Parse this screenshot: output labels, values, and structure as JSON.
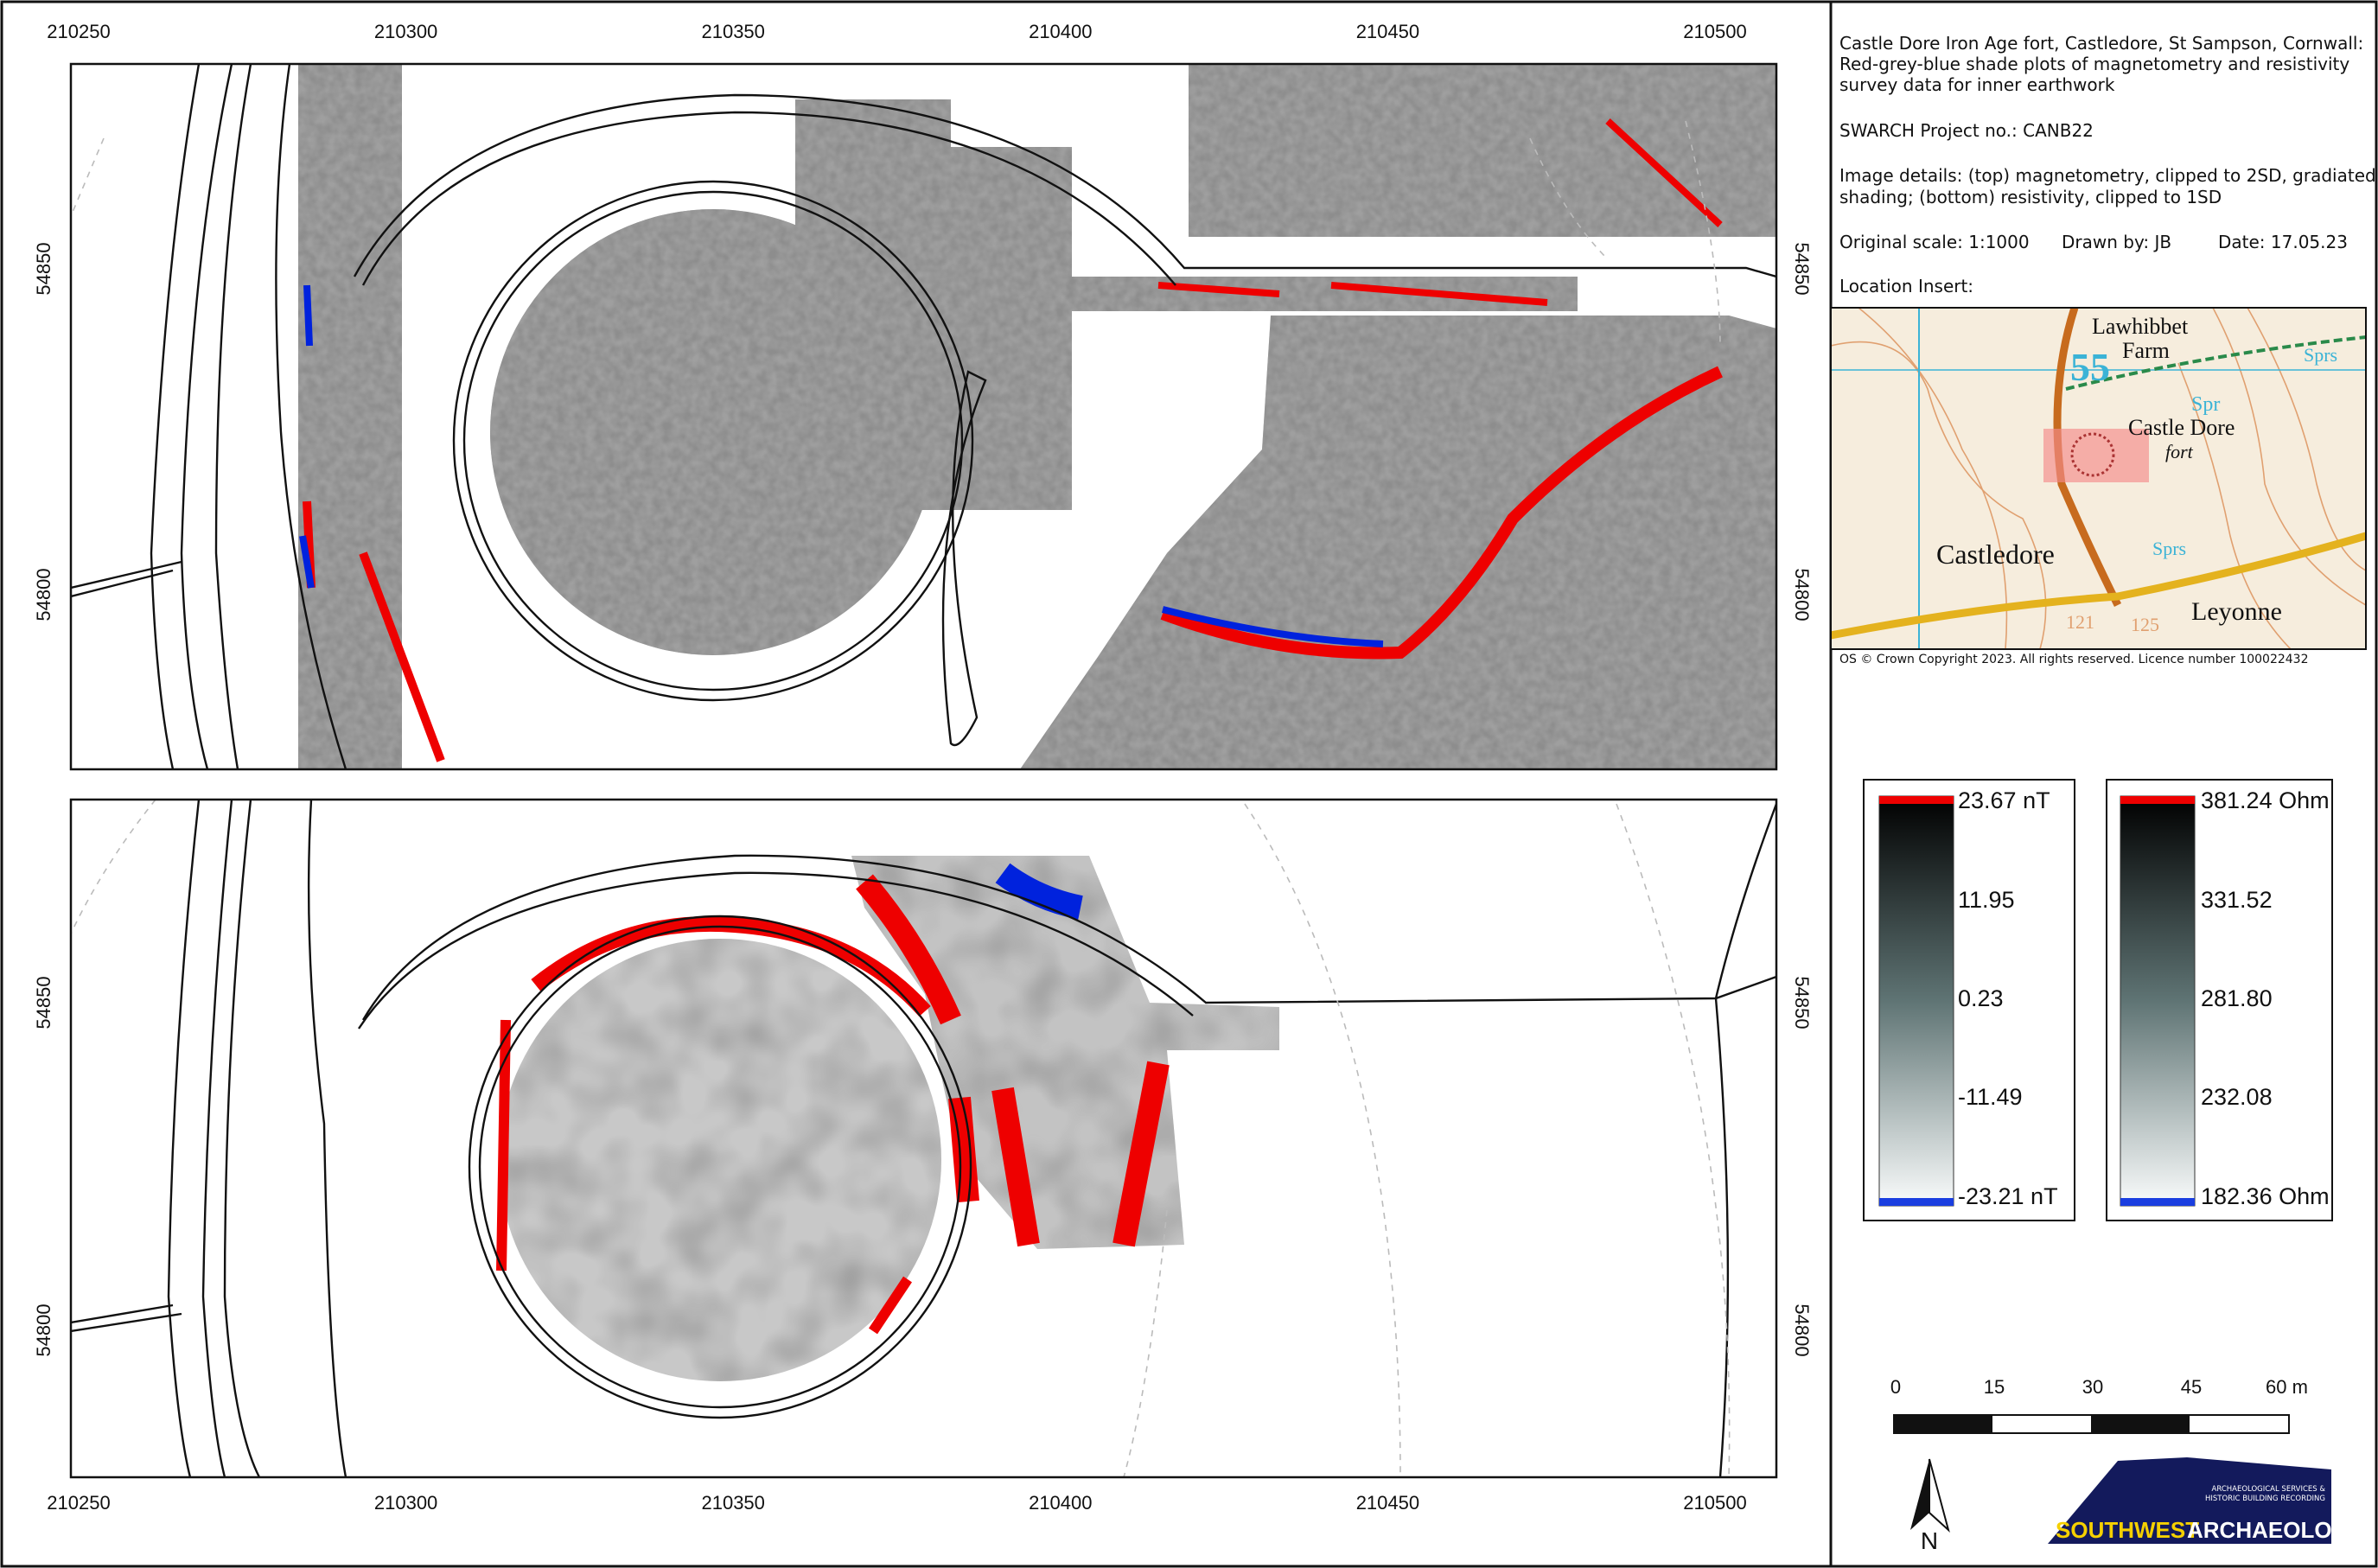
{
  "title": [
    "Castle Dore Iron Age fort, Castledore, St Sampson, Cornwall:",
    "Red-grey-blue shade plots of magnetometry and resistivity",
    "survey data for inner earthwork"
  ],
  "project": "SWARCH Project no.: CANB22",
  "image_details": [
    "Image details: (top) magnetometry, clipped to 2SD, gradiated",
    "shading; (bottom) resistivity, clipped to 1SD"
  ],
  "original_scale": "Original scale: 1:1000",
  "drawn_by": "Drawn by: JB",
  "date": "Date: 17.05.23",
  "location_insert": {
    "heading": "Location Insert:",
    "labels": [
      "Lawhibbet",
      "Farm",
      "55",
      "Spr",
      "Castle Dore",
      "fort",
      "Sprs",
      "Castledore",
      "Sprs",
      "Leyonne",
      "121",
      "125"
    ],
    "copyright": "OS © Crown Copyright 2023. All rights reserved. Licence number 100022432"
  },
  "top_map": {
    "x_ticks": [
      "210250",
      "210300",
      "210350",
      "210400",
      "210450",
      "210500"
    ],
    "y_ticks": [
      "54850",
      "54800"
    ]
  },
  "bottom_map": {
    "x_ticks": [
      "210250",
      "210300",
      "210350",
      "210400",
      "210450",
      "210500"
    ],
    "y_ticks": [
      "54850",
      "54800"
    ]
  },
  "legend_magnetometry": [
    "23.67 nT",
    "11.95",
    "0.23",
    "-11.49",
    "-23.21 nT"
  ],
  "legend_resistivity": [
    "381.24 Ohm",
    "331.52",
    "281.80",
    "232.08",
    "182.36 Ohm"
  ],
  "scale_bar": [
    "0",
    "15",
    "30",
    "45",
    "60 m"
  ],
  "north": "N",
  "logo": {
    "tagline": [
      "ARCHAEOLOGICAL SERVICES &",
      "HISTORIC BUILDING RECORDING"
    ],
    "name_a": "SOUTHWEST",
    "name_b": "ARCHAEOLOGY"
  }
}
